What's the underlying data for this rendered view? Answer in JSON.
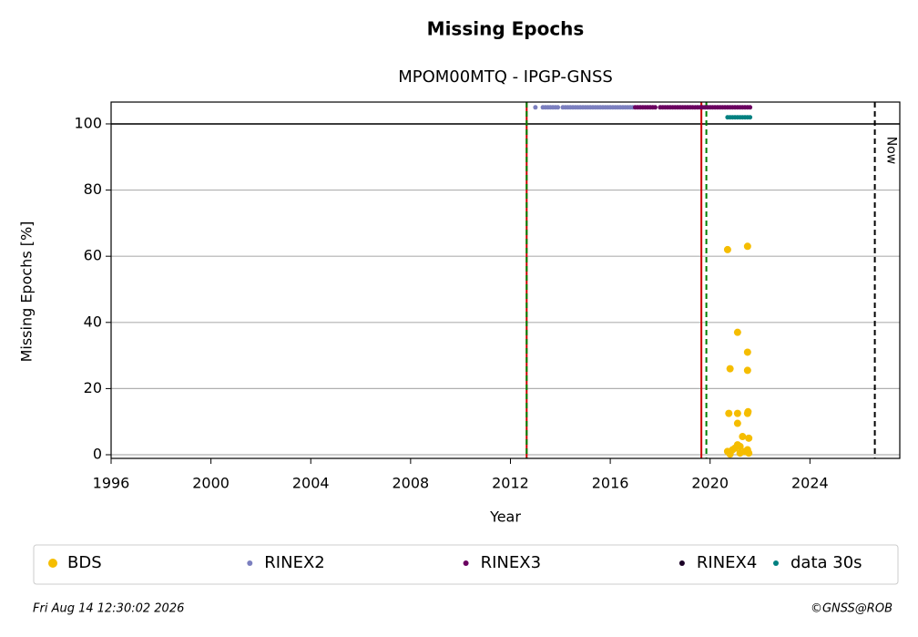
{
  "chart_data": {
    "type": "scatter",
    "title": "Missing Epochs",
    "subtitle": "MPOM00MTQ - IPGP-GNSS",
    "x_label": "Year",
    "y_label": "Missing Epochs [%]",
    "xlim": [
      1996,
      2027.6
    ],
    "ylim": [
      -1.1,
      106.6
    ],
    "xticks": [
      1996,
      2000,
      2004,
      2008,
      2012,
      2016,
      2020,
      2024
    ],
    "yticks": [
      0,
      20,
      40,
      60,
      80,
      100
    ],
    "grid": true,
    "hlines": [
      {
        "value": 100,
        "color": "#000000"
      }
    ],
    "vlines": [
      {
        "x": 2012.65,
        "color": "#cc0000",
        "dashed": false
      },
      {
        "x": 2012.65,
        "color": "#008000",
        "dashed": true
      },
      {
        "x": 2019.65,
        "color": "#cc0000",
        "dashed": false
      },
      {
        "x": 2019.85,
        "color": "#008000",
        "dashed": true
      },
      {
        "x": 2026.6,
        "color": "#000000",
        "dashed": true,
        "label": "Now"
      }
    ],
    "series": [
      {
        "name": "BDS",
        "color": "#f5bd00",
        "size": 4,
        "x": [
          2020.7,
          2020.7,
          2020.8,
          2020.75,
          2020.8,
          2020.9,
          2021.0,
          2021.1,
          2021.1,
          2021.1,
          2021.1,
          2021.2,
          2021.3,
          2021.4,
          2021.5,
          2021.5,
          2021.5,
          2021.5,
          2021.52,
          2021.55,
          2021.5,
          2021.55,
          2020.8,
          2021.2
        ],
        "values": [
          62,
          1,
          26,
          12.5,
          0.5,
          1.5,
          2,
          37,
          12.5,
          9.5,
          3,
          2.5,
          5.5,
          1,
          63,
          31,
          25.5,
          12.5,
          13,
          5,
          1.5,
          0.5,
          0.2,
          0.5
        ]
      },
      {
        "name": "RINEX2",
        "color": "#7b7fbf",
        "size": 2.5,
        "x": [
          2013.0,
          2013.3,
          2013.4,
          2013.5,
          2013.6,
          2013.7,
          2013.8,
          2013.9,
          2014.1,
          2014.2,
          2014.3,
          2014.4,
          2014.5,
          2014.6,
          2014.7,
          2014.8,
          2014.9,
          2015.0,
          2015.1,
          2015.2,
          2015.3,
          2015.4,
          2015.5,
          2015.6,
          2015.7,
          2015.8,
          2015.9,
          2016.0,
          2016.1,
          2016.2,
          2016.3,
          2016.4,
          2016.5,
          2016.6,
          2016.7,
          2016.8,
          2016.9
        ],
        "values": [
          105,
          105,
          105,
          105,
          105,
          105,
          105,
          105,
          105,
          105,
          105,
          105,
          105,
          105,
          105,
          105,
          105,
          105,
          105,
          105,
          105,
          105,
          105,
          105,
          105,
          105,
          105,
          105,
          105,
          105,
          105,
          105,
          105,
          105,
          105,
          105,
          105
        ]
      },
      {
        "name": "RINEX3",
        "color": "#6a0060",
        "size": 2.5,
        "x": [
          2017.0,
          2017.1,
          2017.2,
          2017.3,
          2017.4,
          2017.5,
          2017.6,
          2017.7,
          2017.8,
          2018.0,
          2018.1,
          2018.2,
          2018.3,
          2018.4,
          2018.5,
          2018.6,
          2018.7,
          2018.8,
          2018.9,
          2019.0,
          2019.1,
          2019.2,
          2019.3,
          2019.4,
          2019.5,
          2019.6,
          2019.7,
          2019.8,
          2019.9,
          2020.0,
          2020.1,
          2020.2,
          2020.3,
          2020.4,
          2020.5,
          2020.6,
          2020.7,
          2020.8,
          2020.9,
          2021.0,
          2021.1,
          2021.2,
          2021.3,
          2021.4,
          2021.5,
          2021.6
        ],
        "values": [
          105,
          105,
          105,
          105,
          105,
          105,
          105,
          105,
          105,
          105,
          105,
          105,
          105,
          105,
          105,
          105,
          105,
          105,
          105,
          105,
          105,
          105,
          105,
          105,
          105,
          105,
          105,
          105,
          105,
          105,
          105,
          105,
          105,
          105,
          105,
          105,
          105,
          105,
          105,
          105,
          105,
          105,
          105,
          105,
          105,
          105
        ]
      },
      {
        "name": "RINEX4",
        "color": "#1a0026",
        "size": 2.5,
        "x": [],
        "values": []
      },
      {
        "name": "data 30s",
        "color": "#008080",
        "size": 2.5,
        "x": [
          2020.7,
          2020.8,
          2020.9,
          2021.0,
          2021.1,
          2021.2,
          2021.3,
          2021.4,
          2021.5,
          2021.6
        ],
        "values": [
          102,
          102,
          102,
          102,
          102,
          102,
          102,
          102,
          102,
          102
        ]
      }
    ],
    "footer_left": "Fri Aug 14 12:30:02 2026",
    "footer_right": "©GNSS@ROB"
  }
}
